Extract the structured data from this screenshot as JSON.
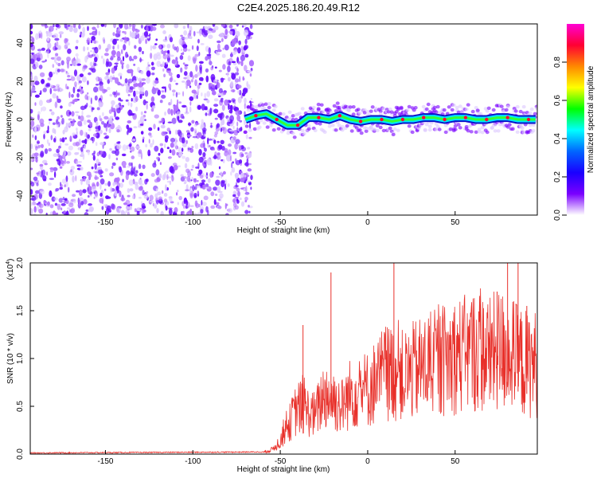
{
  "title": "C2E4.2025.186.20.49.R12",
  "chart_data": [
    {
      "type": "heatmap",
      "xlabel": "Height of straight line (km)",
      "ylabel": "Frequency (Hz)",
      "xlim": [
        -193,
        97
      ],
      "ylim": [
        -50,
        50
      ],
      "xticks": [
        -150,
        -100,
        -50,
        0,
        50
      ],
      "yticks": [
        -40,
        -20,
        0,
        20,
        40
      ],
      "noise_region_x": [
        -193,
        -70
      ],
      "signal_band_y": [
        -7,
        7
      ],
      "ridge": [
        {
          "x": -70,
          "y": 0
        },
        {
          "x": -64,
          "y": 2
        },
        {
          "x": -58,
          "y": 3
        },
        {
          "x": -52,
          "y": 0
        },
        {
          "x": -46,
          "y": -3
        },
        {
          "x": -40,
          "y": -3
        },
        {
          "x": -34,
          "y": 1
        },
        {
          "x": -28,
          "y": 1
        },
        {
          "x": -22,
          "y": 0
        },
        {
          "x": -16,
          "y": 2
        },
        {
          "x": -10,
          "y": 0
        },
        {
          "x": -4,
          "y": -1
        },
        {
          "x": 2,
          "y": 0
        },
        {
          "x": 8,
          "y": 0
        },
        {
          "x": 14,
          "y": -1
        },
        {
          "x": 20,
          "y": 0
        },
        {
          "x": 26,
          "y": 0
        },
        {
          "x": 32,
          "y": 1
        },
        {
          "x": 38,
          "y": 1
        },
        {
          "x": 44,
          "y": 0
        },
        {
          "x": 50,
          "y": 1
        },
        {
          "x": 56,
          "y": 1
        },
        {
          "x": 62,
          "y": 0
        },
        {
          "x": 68,
          "y": 0
        },
        {
          "x": 74,
          "y": 1
        },
        {
          "x": 80,
          "y": 1
        },
        {
          "x": 86,
          "y": 0
        },
        {
          "x": 92,
          "y": 0
        },
        {
          "x": 96,
          "y": 0
        }
      ],
      "colorbar": {
        "label": "Normalized spectral amplitude",
        "range": [
          0,
          1
        ],
        "ticks": [
          0.0,
          0.2,
          0.4,
          0.6,
          0.8
        ],
        "colors": [
          "#ff00d4",
          "#ff0033",
          "#ff8800",
          "#ffff00",
          "#00ff00",
          "#00ffff",
          "#0066ff",
          "#1a00ff",
          "#7a00ff",
          "#ffffff"
        ]
      }
    },
    {
      "type": "line",
      "xlabel": "Height of straight line (km)",
      "ylabel": "SNR (10 * v/v)",
      "ylabel_multiplier": "(x10",
      "ylabel_multiplier_exp": "4",
      "ylabel_multiplier_close": ")",
      "xlim": [
        -193,
        97
      ],
      "ylim": [
        0,
        2.0
      ],
      "xticks": [
        -150,
        -100,
        -50,
        0,
        50
      ],
      "yticks": [
        0.0,
        0.5,
        1.0,
        1.5,
        2.0
      ],
      "color": "#e8302a",
      "series": [
        {
          "x": [
            -193,
            -60,
            -55,
            -50,
            -45,
            -40,
            -35,
            -30,
            -25,
            -20,
            -15,
            -10,
            -5,
            0,
            5,
            10,
            15,
            20,
            25,
            30,
            35,
            40,
            45,
            50,
            55,
            60,
            65,
            70,
            75,
            80,
            85,
            90,
            96
          ],
          "values": [
            0.01,
            0.02,
            0.05,
            0.15,
            0.35,
            0.55,
            0.5,
            0.45,
            0.7,
            0.65,
            0.55,
            0.7,
            0.75,
            0.75,
            0.85,
            0.95,
            0.95,
            0.9,
            0.95,
            1.0,
            1.05,
            1.05,
            1.1,
            1.15,
            1.15,
            1.2,
            1.2,
            1.15,
            1.2,
            1.2,
            1.1,
            1.05,
            1.05
          ]
        }
      ],
      "peaks": [
        {
          "x": -37,
          "y": 1.35
        },
        {
          "x": -21,
          "y": 1.9
        },
        {
          "x": 15,
          "y": 2.0
        },
        {
          "x": 74,
          "y": 1.7
        },
        {
          "x": 80,
          "y": 2.0
        },
        {
          "x": 86,
          "y": 2.0
        },
        {
          "x": 91,
          "y": 1.55
        }
      ]
    }
  ]
}
